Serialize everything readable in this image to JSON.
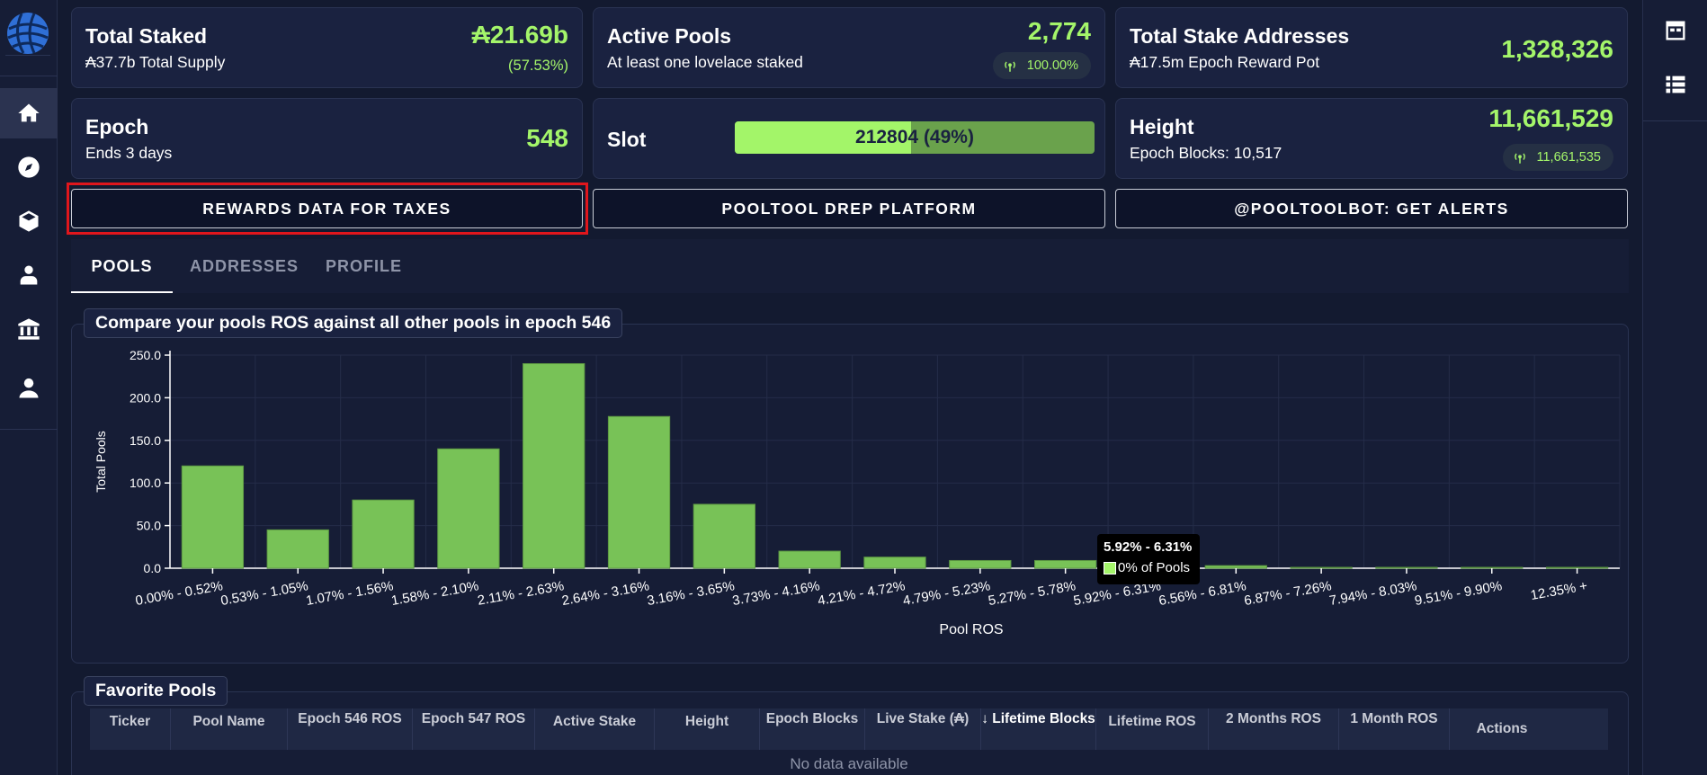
{
  "stats": {
    "total_staked": {
      "title": "Total Staked",
      "sub": "₳37.7b Total Supply",
      "value": "₳21.69b",
      "secondary": "(57.53%)"
    },
    "active_pools": {
      "title": "Active Pools",
      "sub": "At least one lovelace staked",
      "value": "2,774",
      "badge": "100.00%"
    },
    "total_addresses": {
      "title": "Total Stake Addresses",
      "sub": "₳17.5m Epoch Reward Pot",
      "value": "1,328,326"
    },
    "epoch": {
      "title": "Epoch",
      "sub": "Ends 3 days",
      "value": "548"
    },
    "slot": {
      "title": "Slot",
      "value": "212804",
      "percent_label": "(49%)",
      "progress": 0.49
    },
    "height": {
      "title": "Height",
      "sub": "Epoch Blocks: 10,517",
      "value": "11,661,529",
      "badge": "11,661,535"
    }
  },
  "buttons": {
    "rewards": "REWARDS DATA FOR TAXES",
    "drep": "POOLTOOL DREP PLATFORM",
    "alerts": "@POOLTOOLBOT: GET ALERTS"
  },
  "tabs": [
    "POOLS",
    "ADDRESSES",
    "PROFILE"
  ],
  "chart_panel_title": "Compare your pools ROS against all other pools in epoch 546",
  "tooltip": {
    "title": "5.92% - 6.31%",
    "body": "0% of Pools"
  },
  "chart_data": {
    "type": "bar",
    "xlabel": "Pool ROS",
    "ylabel": "Total Pools",
    "ylim": [
      0,
      250
    ],
    "yticks": [
      "0.0",
      "50.0",
      "100.0",
      "150.0",
      "200.0",
      "250.0"
    ],
    "categories": [
      "0.00% - 0.52%",
      "0.53% - 1.05%",
      "1.07% - 1.56%",
      "1.58% - 2.10%",
      "2.11% - 2.63%",
      "2.64% - 3.16%",
      "3.16% - 3.65%",
      "3.73% - 4.16%",
      "4.21% - 4.72%",
      "4.79% - 5.23%",
      "5.27% - 5.78%",
      "5.92% - 6.31%",
      "6.56% - 6.81%",
      "6.87% - 7.26%",
      "7.94% - 8.03%",
      "9.51% - 9.90%",
      "12.35% +"
    ],
    "values": [
      120,
      45,
      80,
      140,
      240,
      178,
      75,
      20,
      13,
      9,
      9,
      2,
      3,
      1,
      1,
      1,
      1
    ],
    "color": "#78c257"
  },
  "favorites": {
    "title": "Favorite Pools",
    "columns": [
      "Ticker",
      "Pool Name",
      "Epoch 546 ROS",
      "Epoch 547 ROS",
      "Active Stake",
      "Height",
      "Epoch Blocks",
      "Live Stake (₳)",
      "↓ Lifetime Blocks",
      "Lifetime ROS",
      "2 Months ROS",
      "1 Month ROS",
      "Actions"
    ],
    "empty": "No data available"
  },
  "colors": {
    "accent": "#a4f56a",
    "bg": "#131a30",
    "highlight": "#e0161c"
  }
}
